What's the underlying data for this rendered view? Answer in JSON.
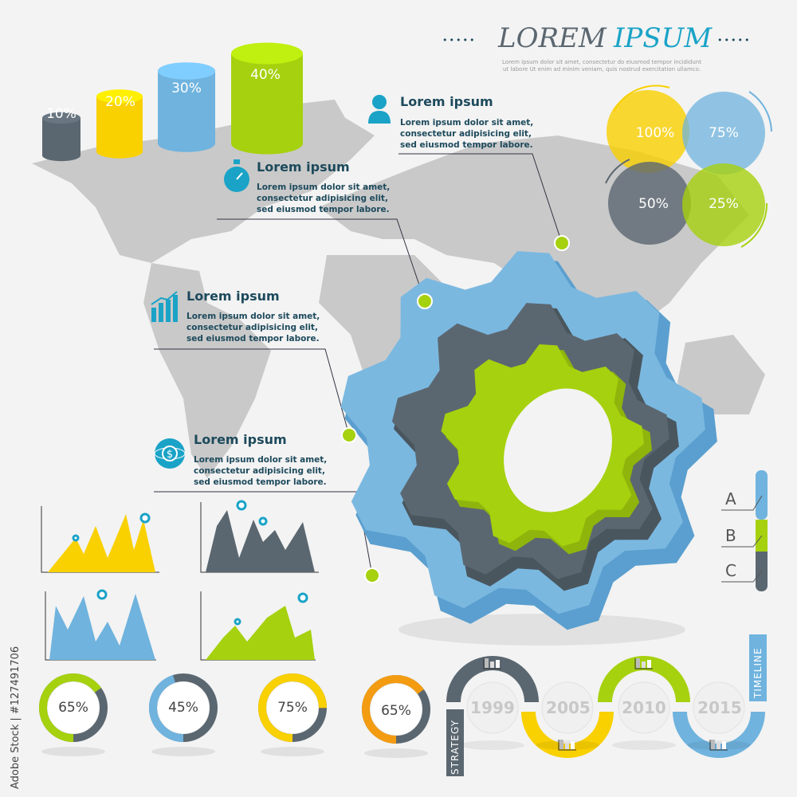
{
  "header": {
    "title_part1": "LOREM",
    "title_part2": "IPSUM",
    "subtitle_line1": "Lorem ipsum dolor sit amet, consectetur do eiusmod tempor incididunt",
    "subtitle_line2": "ut labore Ut enim ad minim veniam, quis nostrud exercitation ullamco."
  },
  "cylinders": [
    {
      "label": "10%",
      "value": 10,
      "color": "#5b6770"
    },
    {
      "label": "20%",
      "value": 20,
      "color": "#f9d000"
    },
    {
      "label": "30%",
      "value": 30,
      "color": "#6fb3de"
    },
    {
      "label": "40%",
      "value": 40,
      "color": "#a6d10e"
    }
  ],
  "callouts": [
    {
      "icon": "person-icon",
      "title": "Lorem ipsum",
      "lines": [
        "Lorem ipsum dolor sit amet,",
        "consectetur adipisicing elit,",
        "sed eiusmod tempor labore."
      ]
    },
    {
      "icon": "stopwatch-icon",
      "title": "Lorem ipsum",
      "lines": [
        "Lorem ipsum dolor sit amet,",
        "consectetur adipisicing elit,",
        "sed eiusmod tempor labore."
      ]
    },
    {
      "icon": "bar-chart-icon",
      "title": "Lorem ipsum",
      "lines": [
        "Lorem ipsum dolor sit amet,",
        "consectetur adipisicing elit,",
        "sed eiusmod tempor labore."
      ]
    },
    {
      "icon": "dollar-globe-icon",
      "title": "Lorem ipsum",
      "lines": [
        "Lorem ipsum dolor sit amet,",
        "consectetur adipisicing elit,",
        "sed eiusmod tempor labore."
      ]
    }
  ],
  "venn": [
    {
      "label": "100%",
      "color": "#f9d000"
    },
    {
      "label": "75%",
      "color": "#6fb3de"
    },
    {
      "label": "50%",
      "color": "#5b6770"
    },
    {
      "label": "25%",
      "color": "#a6d10e"
    }
  ],
  "abc": {
    "labels": [
      "A",
      "B",
      "C"
    ],
    "colors": [
      "#6fb3de",
      "#a6d10e",
      "#5b6770"
    ]
  },
  "donuts": [
    {
      "label": "65%",
      "value": 65,
      "color": "#a6d10e"
    },
    {
      "label": "45%",
      "value": 45,
      "color": "#6fb3de"
    },
    {
      "label": "75%",
      "value": 75,
      "color": "#f9d000"
    },
    {
      "label": "65%",
      "value": 65,
      "color": "#f39c12"
    }
  ],
  "timeline": {
    "years": [
      "1999",
      "2005",
      "2010",
      "2015"
    ],
    "colors": [
      "#5b6770",
      "#f9d000",
      "#a6d10e",
      "#6fb3de"
    ],
    "left_label": "STRATEGY",
    "right_label": "TIMELINE"
  },
  "colors": {
    "dark": "#5b6770",
    "yellow": "#f9d000",
    "blue": "#6fb3de",
    "green": "#a6d10e",
    "teal": "#1aa3c7",
    "map": "#c9c9c9"
  },
  "watermark": "Adobe Stock | #127491706"
}
